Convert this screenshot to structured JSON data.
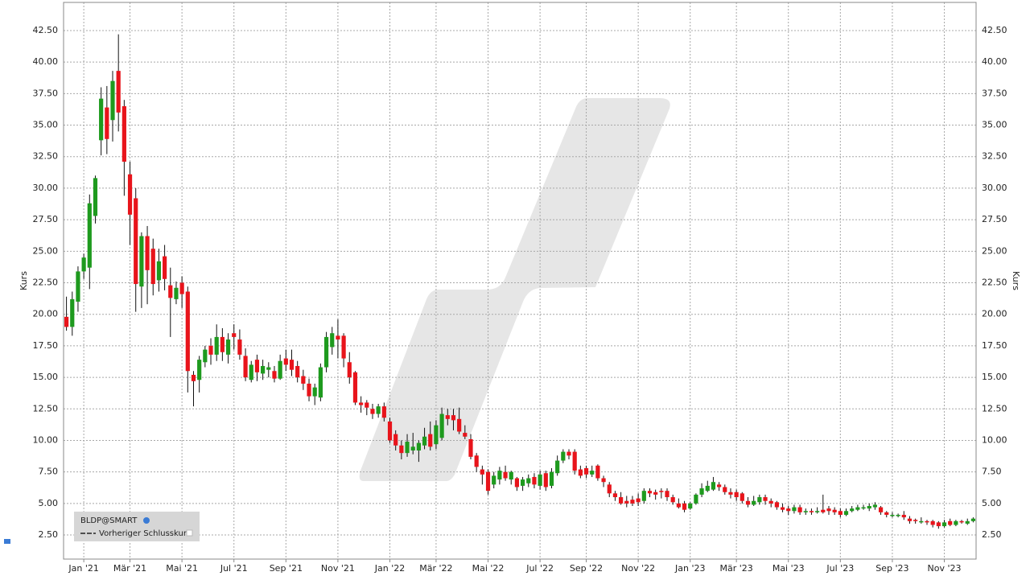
{
  "chart_data": {
    "type": "candlestick",
    "y_label": "Kurs",
    "legend_symbol": "BLDP@SMART",
    "legend_items": [
      "Vorheriger Schlusskurs"
    ],
    "up_color": "#1e9a1e",
    "down_color": "#e8141b",
    "grid": true,
    "ylim": [
      0.59,
      44.73
    ],
    "yticks": [
      {
        "value": 2.5,
        "label": "2.50"
      },
      {
        "value": 5,
        "label": "5.00"
      },
      {
        "value": 7.5,
        "label": "7.50"
      },
      {
        "value": 10,
        "label": "10.00"
      },
      {
        "value": 12.5,
        "label": "12.50"
      },
      {
        "value": 15,
        "label": "15.00"
      },
      {
        "value": 17.5,
        "label": "17.50"
      },
      {
        "value": 20,
        "label": "20.00"
      },
      {
        "value": 22.5,
        "label": "22.50"
      },
      {
        "value": 25,
        "label": "25.00"
      },
      {
        "value": 27.5,
        "label": "27.50"
      },
      {
        "value": 30,
        "label": "30.00"
      },
      {
        "value": 32.5,
        "label": "32.50"
      },
      {
        "value": 35,
        "label": "35.00"
      },
      {
        "value": 37.5,
        "label": "37.50"
      },
      {
        "value": 40,
        "label": "40.00"
      },
      {
        "value": 42.5,
        "label": "42.50"
      }
    ],
    "categories": [
      null,
      null,
      null,
      "Jan '21",
      null,
      null,
      null,
      null,
      null,
      null,
      null,
      "Mär '21",
      null,
      null,
      null,
      null,
      null,
      null,
      null,
      null,
      "Mai '21",
      null,
      null,
      null,
      null,
      null,
      null,
      null,
      null,
      "Jul '21",
      null,
      null,
      null,
      null,
      null,
      null,
      null,
      null,
      "Sep '21",
      null,
      null,
      null,
      null,
      null,
      null,
      null,
      null,
      "Nov '21",
      null,
      null,
      null,
      null,
      null,
      null,
      null,
      null,
      "Jan '22",
      null,
      null,
      null,
      null,
      null,
      null,
      null,
      "Mär '22",
      null,
      null,
      null,
      null,
      null,
      null,
      null,
      null,
      "Mai '22",
      null,
      null,
      null,
      null,
      null,
      null,
      null,
      null,
      "Jul '22",
      null,
      null,
      null,
      null,
      null,
      null,
      null,
      "Sep '22",
      null,
      null,
      null,
      null,
      null,
      null,
      null,
      null,
      "Nov '22",
      null,
      null,
      null,
      null,
      null,
      null,
      null,
      null,
      "Jan '23",
      null,
      null,
      null,
      null,
      null,
      null,
      null,
      "Mär '23",
      null,
      null,
      null,
      null,
      null,
      null,
      null,
      null,
      "Mai '23",
      null,
      null,
      null,
      null,
      null,
      null,
      null,
      null,
      "Jul '23",
      null,
      null,
      null,
      null,
      null,
      null,
      null,
      null,
      "Sep '23",
      null,
      null,
      null,
      null,
      null,
      null,
      null,
      null,
      "Nov '23",
      null,
      null,
      null,
      null,
      null
    ],
    "open": [
      19.8,
      19.0,
      21.0,
      23.4,
      23.7,
      27.8,
      33.8,
      36.4,
      35.4,
      39.3,
      36.5,
      31.1,
      29.2,
      22.2,
      26.2,
      25.2,
      22.7,
      24.6,
      22.3,
      21.2,
      22.5,
      21.8,
      15.2,
      14.8,
      16.2,
      17.5,
      16.8,
      18.2,
      16.8,
      18.5,
      18.0,
      16.7,
      14.8,
      16.4,
      15.3,
      15.6,
      15.5,
      14.9,
      16.5,
      16.4,
      15.9,
      15.1,
      14.5,
      13.5,
      13.4,
      15.8,
      17.4,
      18.3,
      18.3,
      16.2,
      15.4,
      13.0,
      13.0,
      12.5,
      12.1,
      12.7,
      11.5,
      10.5,
      9.6,
      9.0,
      9.2,
      9.2,
      9.6,
      10.5,
      9.7,
      10.2,
      12.0,
      12.0,
      11.7,
      10.6,
      10.1,
      8.8,
      7.7,
      7.5,
      6.5,
      6.9,
      7.5,
      6.9,
      7.0,
      6.4,
      6.6,
      7.1,
      6.4,
      7.4,
      6.4,
      7.4,
      8.4,
      9.1,
      9.1,
      7.7,
      7.8,
      7.3,
      8.0,
      7.0,
      6.5,
      5.8,
      5.5,
      5.2,
      5.3,
      5.4,
      5.2,
      6.0,
      5.9,
      6.0,
      6.0,
      5.5,
      5.0,
      5.0,
      4.6,
      5.0,
      5.7,
      6.0,
      6.1,
      6.5,
      6.3,
      5.9,
      5.9,
      5.8,
      5.2,
      4.9,
      5.1,
      5.5,
      5.2,
      5.1,
      4.7,
      4.6,
      4.4,
      4.7,
      4.3,
      4.4,
      4.3,
      4.5,
      4.6,
      4.5,
      4.4,
      4.1,
      4.4,
      4.5,
      4.6,
      4.6,
      4.7,
      4.7,
      4.3,
      4.0,
      4.0,
      4.1,
      3.8,
      3.7,
      3.5,
      3.6,
      3.6,
      3.5,
      3.2,
      3.6,
      3.3,
      3.6,
      3.4,
      3.6
    ],
    "high": [
      21.4,
      21.8,
      23.8,
      24.8,
      29.5,
      31.0,
      38.0,
      38.1,
      39.3,
      42.2,
      37.0,
      32.1,
      30.0,
      26.5,
      27.0,
      26.0,
      25.2,
      25.5,
      23.7,
      22.6,
      23.0,
      22.2,
      15.5,
      16.7,
      17.5,
      18.1,
      19.2,
      18.9,
      18.5,
      19.2,
      18.8,
      17.3,
      16.3,
      16.8,
      16.4,
      16.2,
      15.9,
      16.8,
      17.2,
      17.2,
      16.3,
      15.6,
      14.9,
      14.5,
      16.1,
      18.6,
      19.0,
      19.6,
      18.5,
      17.0,
      15.5,
      13.5,
      13.2,
      12.9,
      12.9,
      13.0,
      11.8,
      10.8,
      10.0,
      10.5,
      10.6,
      10.0,
      11.0,
      11.5,
      11.6,
      12.6,
      12.5,
      12.5,
      12.6,
      11.2,
      10.5,
      9.0,
      8.0,
      7.7,
      7.5,
      7.9,
      8.0,
      7.6,
      7.1,
      7.1,
      7.3,
      7.4,
      7.6,
      7.6,
      7.8,
      8.8,
      9.3,
      9.3,
      9.3,
      8.0,
      8.0,
      8.0,
      8.1,
      7.2,
      6.7,
      6.0,
      5.9,
      5.6,
      5.6,
      5.8,
      6.2,
      6.2,
      6.1,
      6.2,
      6.2,
      5.7,
      5.4,
      5.2,
      5.1,
      5.8,
      6.6,
      6.8,
      7.1,
      6.7,
      6.5,
      6.2,
      6.1,
      5.9,
      5.5,
      5.6,
      5.7,
      5.7,
      5.4,
      5.2,
      5.0,
      4.8,
      4.9,
      4.9,
      4.6,
      4.6,
      4.7,
      5.7,
      4.8,
      4.7,
      4.6,
      4.6,
      4.8,
      4.9,
      4.9,
      5.0,
      5.1,
      4.8,
      4.4,
      4.3,
      4.2,
      4.4,
      4.0,
      3.8,
      3.9,
      3.7,
      3.7,
      3.6,
      3.7,
      3.8,
      3.7,
      3.7,
      3.8,
      3.9
    ],
    "low": [
      18.7,
      18.3,
      20.2,
      22.8,
      22.0,
      27.2,
      32.6,
      32.7,
      33.7,
      34.5,
      29.4,
      25.5,
      20.2,
      20.5,
      20.8,
      21.5,
      21.8,
      21.9,
      18.2,
      20.8,
      20.5,
      13.8,
      12.7,
      13.8,
      15.8,
      16.0,
      16.3,
      16.3,
      16.1,
      17.2,
      16.4,
      14.7,
      14.6,
      14.7,
      14.8,
      15.0,
      14.6,
      14.8,
      15.5,
      15.1,
      14.6,
      14.0,
      13.1,
      12.8,
      13.1,
      15.4,
      16.8,
      16.5,
      15.8,
      14.5,
      12.8,
      12.2,
      12.0,
      11.7,
      11.8,
      11.5,
      9.8,
      9.2,
      8.5,
      8.7,
      8.9,
      8.3,
      9.3,
      9.2,
      9.3,
      10.0,
      11.2,
      10.8,
      10.5,
      10.1,
      8.5,
      7.5,
      6.5,
      5.7,
      6.2,
      6.5,
      6.8,
      6.5,
      6.0,
      6.0,
      6.3,
      6.2,
      6.1,
      6.0,
      6.2,
      7.2,
      8.2,
      8.5,
      7.3,
      7.0,
      7.0,
      7.1,
      6.8,
      6.3,
      5.5,
      5.2,
      4.9,
      4.7,
      4.8,
      4.8,
      5.0,
      5.5,
      5.3,
      5.4,
      5.2,
      4.9,
      4.6,
      4.3,
      4.5,
      4.9,
      5.5,
      5.9,
      6.0,
      6.0,
      5.7,
      5.4,
      5.2,
      5.0,
      4.7,
      4.8,
      4.9,
      4.9,
      4.7,
      4.5,
      4.3,
      4.1,
      4.2,
      4.1,
      4.1,
      4.1,
      4.2,
      4.2,
      4.1,
      4.1,
      3.9,
      4.0,
      4.3,
      4.4,
      4.5,
      4.4,
      4.5,
      4.1,
      3.9,
      3.9,
      3.9,
      3.7,
      3.4,
      3.4,
      3.4,
      3.3,
      3.1,
      3.0,
      3.1,
      3.2,
      3.2,
      3.4,
      3.3,
      3.5
    ],
    "close": [
      19.0,
      21.2,
      23.4,
      24.5,
      28.8,
      30.8,
      37.1,
      33.9,
      38.5,
      36.0,
      32.1,
      27.9,
      22.4,
      26.2,
      23.5,
      22.4,
      24.2,
      22.8,
      21.3,
      22.1,
      21.6,
      15.5,
      14.7,
      16.4,
      17.2,
      16.8,
      18.2,
      17.0,
      18.0,
      18.2,
      16.8,
      15.0,
      16.0,
      15.4,
      15.9,
      15.8,
      14.9,
      16.3,
      16.0,
      15.6,
      15.0,
      14.5,
      13.5,
      14.2,
      15.8,
      18.2,
      18.5,
      18.0,
      16.5,
      15.0,
      13.0,
      12.8,
      12.6,
      12.1,
      12.7,
      11.8,
      10.0,
      9.6,
      9.0,
      9.9,
      9.5,
      9.8,
      10.3,
      9.5,
      11.2,
      12.1,
      11.7,
      11.6,
      10.7,
      10.3,
      8.7,
      7.9,
      7.3,
      6.0,
      7.2,
      7.6,
      7.0,
      7.5,
      6.3,
      6.9,
      7.0,
      6.5,
      7.3,
      6.3,
      7.5,
      8.4,
      9.1,
      8.8,
      7.6,
      7.2,
      7.3,
      7.6,
      7.0,
      6.7,
      5.8,
      5.5,
      5.0,
      5.0,
      5.0,
      5.1,
      6.0,
      5.8,
      5.7,
      5.9,
      5.5,
      5.1,
      4.7,
      4.5,
      5.0,
      5.7,
      6.2,
      6.4,
      6.7,
      6.3,
      5.9,
      5.7,
      5.5,
      5.2,
      4.9,
      5.2,
      5.5,
      5.2,
      5.0,
      4.7,
      4.5,
      4.4,
      4.7,
      4.3,
      4.4,
      4.3,
      4.4,
      4.3,
      4.4,
      4.3,
      4.1,
      4.4,
      4.6,
      4.7,
      4.7,
      4.8,
      4.9,
      4.3,
      4.1,
      4.1,
      4.1,
      3.9,
      3.6,
      3.6,
      3.6,
      3.5,
      3.3,
      3.2,
      3.5,
      3.3,
      3.6,
      3.5,
      3.6,
      3.8
    ]
  }
}
